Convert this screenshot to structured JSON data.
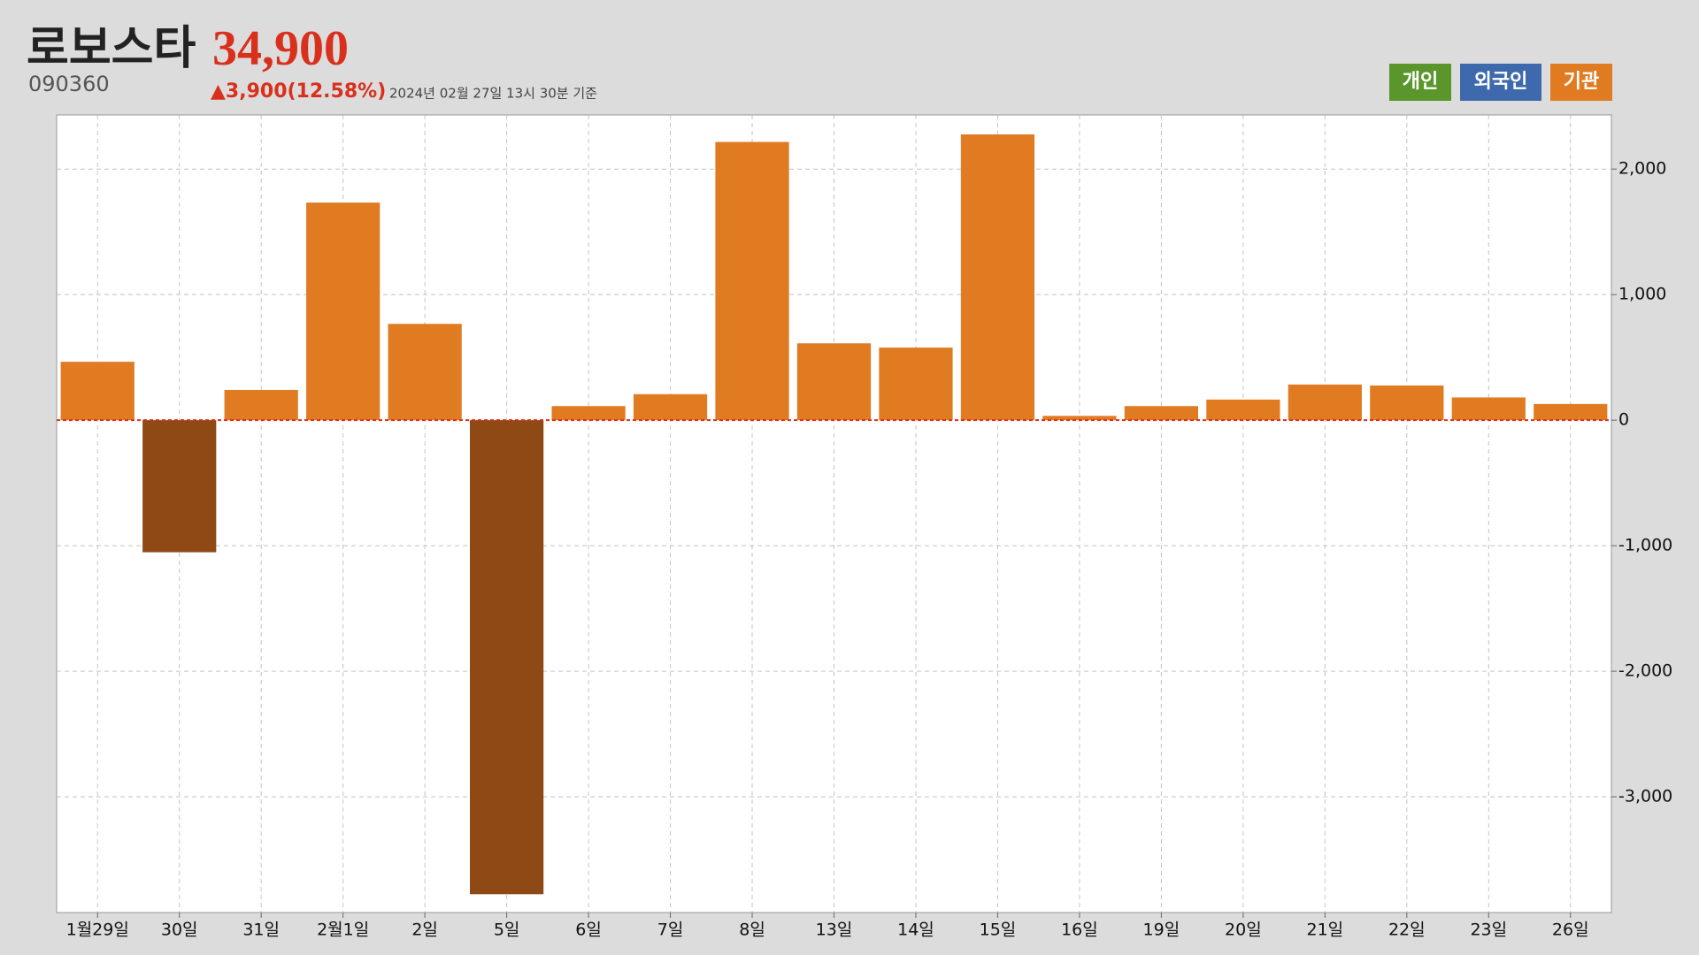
{
  "header": {
    "name": "로보스타",
    "price": "34,900",
    "code": "090360",
    "change": "▲3,900(12.58%)",
    "timestamp": "2024년 02월 27일 13시 30분 기준"
  },
  "chart_data": {
    "type": "bar",
    "categories": [
      "1월29일",
      "30일",
      "31일",
      "2월1일",
      "2일",
      "5일",
      "6일",
      "7일",
      "8일",
      "13일",
      "14일",
      "15일",
      "16일",
      "19일",
      "20일",
      "21일",
      "22일",
      "23일",
      "26일"
    ],
    "values": [
      465,
      -1052,
      241,
      1733,
      767,
      -3776,
      112,
      207,
      2216,
      612,
      578,
      2276,
      34,
      112,
      164,
      284,
      276,
      181,
      129
    ],
    "color": "#e07b22",
    "negative_color": "#8f4914",
    "ylim": [
      -3922,
      2431
    ],
    "yticks": [
      {
        "value": -3000,
        "label": "-3,000"
      },
      {
        "value": -2000,
        "label": "-2,000"
      },
      {
        "value": -1000,
        "label": "-1,000"
      },
      0,
      {
        "value": 1000,
        "label": "1,000"
      },
      {
        "value": 2000,
        "label": "2,000"
      }
    ],
    "grid": true,
    "legend": [
      {
        "name": "개인",
        "color": "#5a962c"
      },
      {
        "name": "외국인",
        "color": "#3f69ad"
      },
      {
        "name": "기관",
        "color": "#e07b22"
      }
    ]
  }
}
